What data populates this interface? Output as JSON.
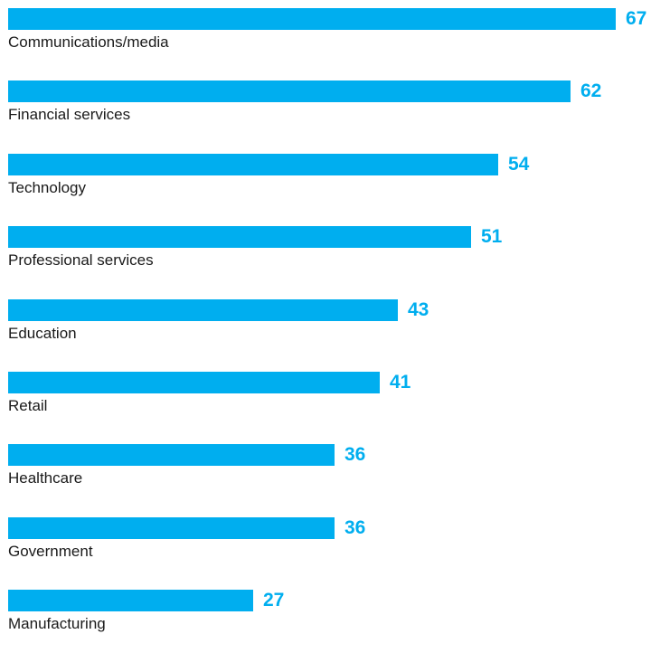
{
  "colors": {
    "bar": "#00aeef",
    "value_text": "#00aeef",
    "label_text": "#1a1a1a"
  },
  "chart_data": {
    "type": "bar",
    "orientation": "horizontal",
    "categories": [
      "Communications/media",
      "Financial services",
      "Technology",
      "Professional services",
      "Education",
      "Retail",
      "Healthcare",
      "Government",
      "Manufacturing"
    ],
    "values": [
      67,
      62,
      54,
      51,
      43,
      41,
      36,
      36,
      27
    ],
    "data_labels": [
      "67",
      "62",
      "54",
      "51",
      "43",
      "41",
      "36",
      "36",
      "27"
    ],
    "title": "",
    "xlabel": "",
    "ylabel": "",
    "xlim": [
      0,
      67
    ],
    "grid": false,
    "legend": "none"
  }
}
